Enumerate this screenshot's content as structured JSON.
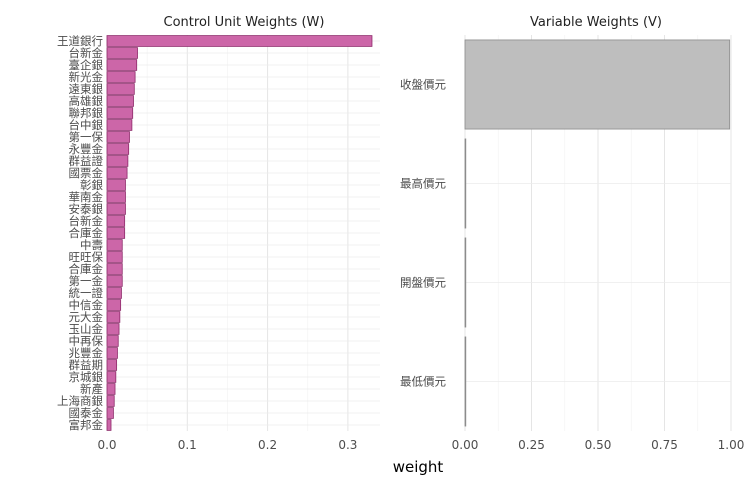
{
  "chart_data": [
    {
      "type": "bar",
      "orientation": "horizontal",
      "title": "Control Unit Weights (W)",
      "xlabel": "weight",
      "xlim": [
        0,
        0.34
      ],
      "xticks": [
        "0.0",
        "0.1",
        "0.2",
        "0.3"
      ],
      "xtick_values": [
        0,
        0.1,
        0.2,
        0.3
      ],
      "bar_color": "#cc66a8",
      "bar_edge_color": "#8e2a6a",
      "categories": [
        "王道銀行",
        "台新金",
        "臺企銀",
        "新光金",
        "遠東銀",
        "高雄銀",
        "聯邦銀",
        "台中銀",
        "第一保",
        "永豐金",
        "群益證",
        "國票金",
        "彰銀",
        "華南金",
        "安泰銀",
        "台新金",
        "合庫金",
        "中壽",
        "旺旺保",
        "合庫金",
        "第一金",
        "統一證",
        "中信金",
        "元大金",
        "玉山金",
        "中再保",
        "兆豐金",
        "群益期",
        "京城銀",
        "新產",
        "上海商銀",
        "國泰金",
        "富邦金"
      ],
      "values": [
        0.33,
        0.038,
        0.037,
        0.035,
        0.034,
        0.033,
        0.032,
        0.031,
        0.028,
        0.027,
        0.026,
        0.025,
        0.023,
        0.023,
        0.023,
        0.022,
        0.022,
        0.019,
        0.019,
        0.019,
        0.019,
        0.018,
        0.017,
        0.016,
        0.015,
        0.014,
        0.013,
        0.012,
        0.011,
        0.01,
        0.009,
        0.008,
        0.005
      ],
      "grid": true
    },
    {
      "type": "bar",
      "orientation": "horizontal",
      "title": "Variable Weights (V)",
      "xlim": [
        0,
        1
      ],
      "xticks": [
        "0.00",
        "0.25",
        "0.50",
        "0.75",
        "1.00"
      ],
      "xtick_values": [
        0,
        0.25,
        0.5,
        0.75,
        1.0
      ],
      "bar_color": "#bebebe",
      "bar_edge_color": "#8c8c8c",
      "categories": [
        "收盤價元",
        "最高價元",
        "開盤價元",
        "最低價元"
      ],
      "values": [
        0.995,
        0.003,
        0.001,
        0.001
      ],
      "grid": true
    }
  ]
}
